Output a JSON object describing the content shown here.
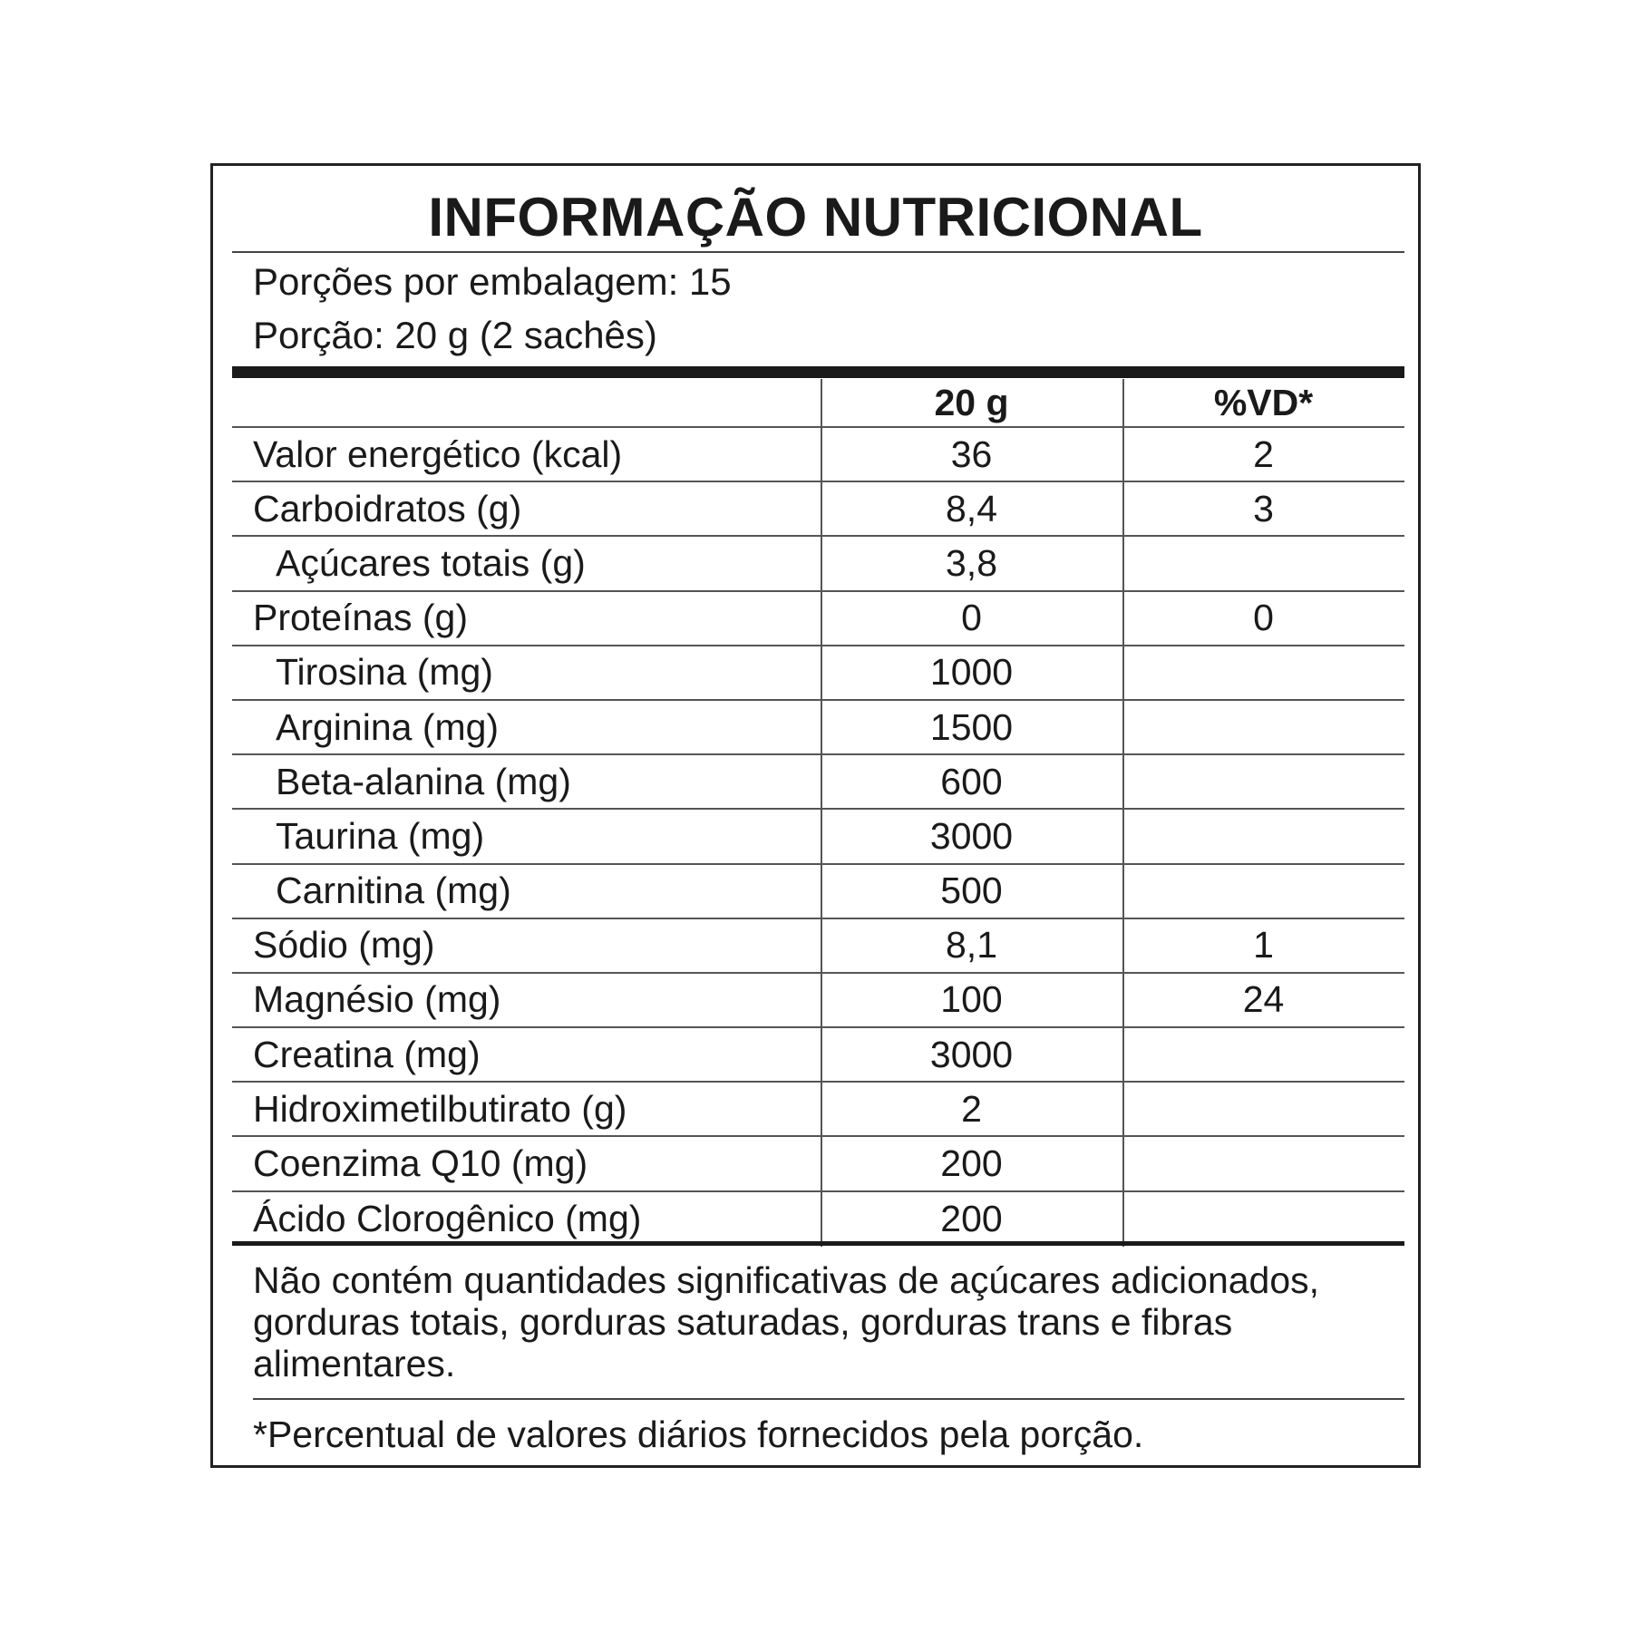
{
  "title": "INFORMAÇÃO NUTRICIONAL",
  "servings_per_package": "Porções por embalagem: 15",
  "serving_size": "Porção: 20 g (2 sachês)",
  "columns": {
    "label": "",
    "amount": "20 g",
    "dv": "%VD*"
  },
  "rows": [
    {
      "label": "Valor energético (kcal)",
      "amount": "36",
      "dv": "2",
      "indent": false
    },
    {
      "label": "Carboidratos (g)",
      "amount": "8,4",
      "dv": "3",
      "indent": false
    },
    {
      "label": "Açúcares totais (g)",
      "amount": "3,8",
      "dv": "",
      "indent": true
    },
    {
      "label": "Proteínas (g)",
      "amount": "0",
      "dv": "0",
      "indent": false
    },
    {
      "label": "Tirosina (mg)",
      "amount": "1000",
      "dv": "",
      "indent": true
    },
    {
      "label": "Arginina (mg)",
      "amount": "1500",
      "dv": "",
      "indent": true
    },
    {
      "label": "Beta-alanina (mg)",
      "amount": "600",
      "dv": "",
      "indent": true
    },
    {
      "label": "Taurina (mg)",
      "amount": "3000",
      "dv": "",
      "indent": true
    },
    {
      "label": "Carnitina (mg)",
      "amount": "500",
      "dv": "",
      "indent": true
    },
    {
      "label": "Sódio (mg)",
      "amount": "8,1",
      "dv": "1",
      "indent": false
    },
    {
      "label": "Magnésio (mg)",
      "amount": "100",
      "dv": "24",
      "indent": false
    },
    {
      "label": "Creatina (mg)",
      "amount": "3000",
      "dv": "",
      "indent": false
    },
    {
      "label": "Hidroximetilbutirato (g)",
      "amount": "2",
      "dv": "",
      "indent": false
    },
    {
      "label": "Coenzima Q10 (mg)",
      "amount": "200",
      "dv": "",
      "indent": false
    },
    {
      "label": "Ácido Clorogênico (mg)",
      "amount": "200",
      "dv": "",
      "indent": false
    }
  ],
  "footnote_not_significant": "Não contém quantidades significativas de açúcares adicionados, gorduras totais, gorduras saturadas, gorduras trans e fibras alimentares.",
  "footnote_dv": "*Percentual de valores diários fornecidos pela porção."
}
